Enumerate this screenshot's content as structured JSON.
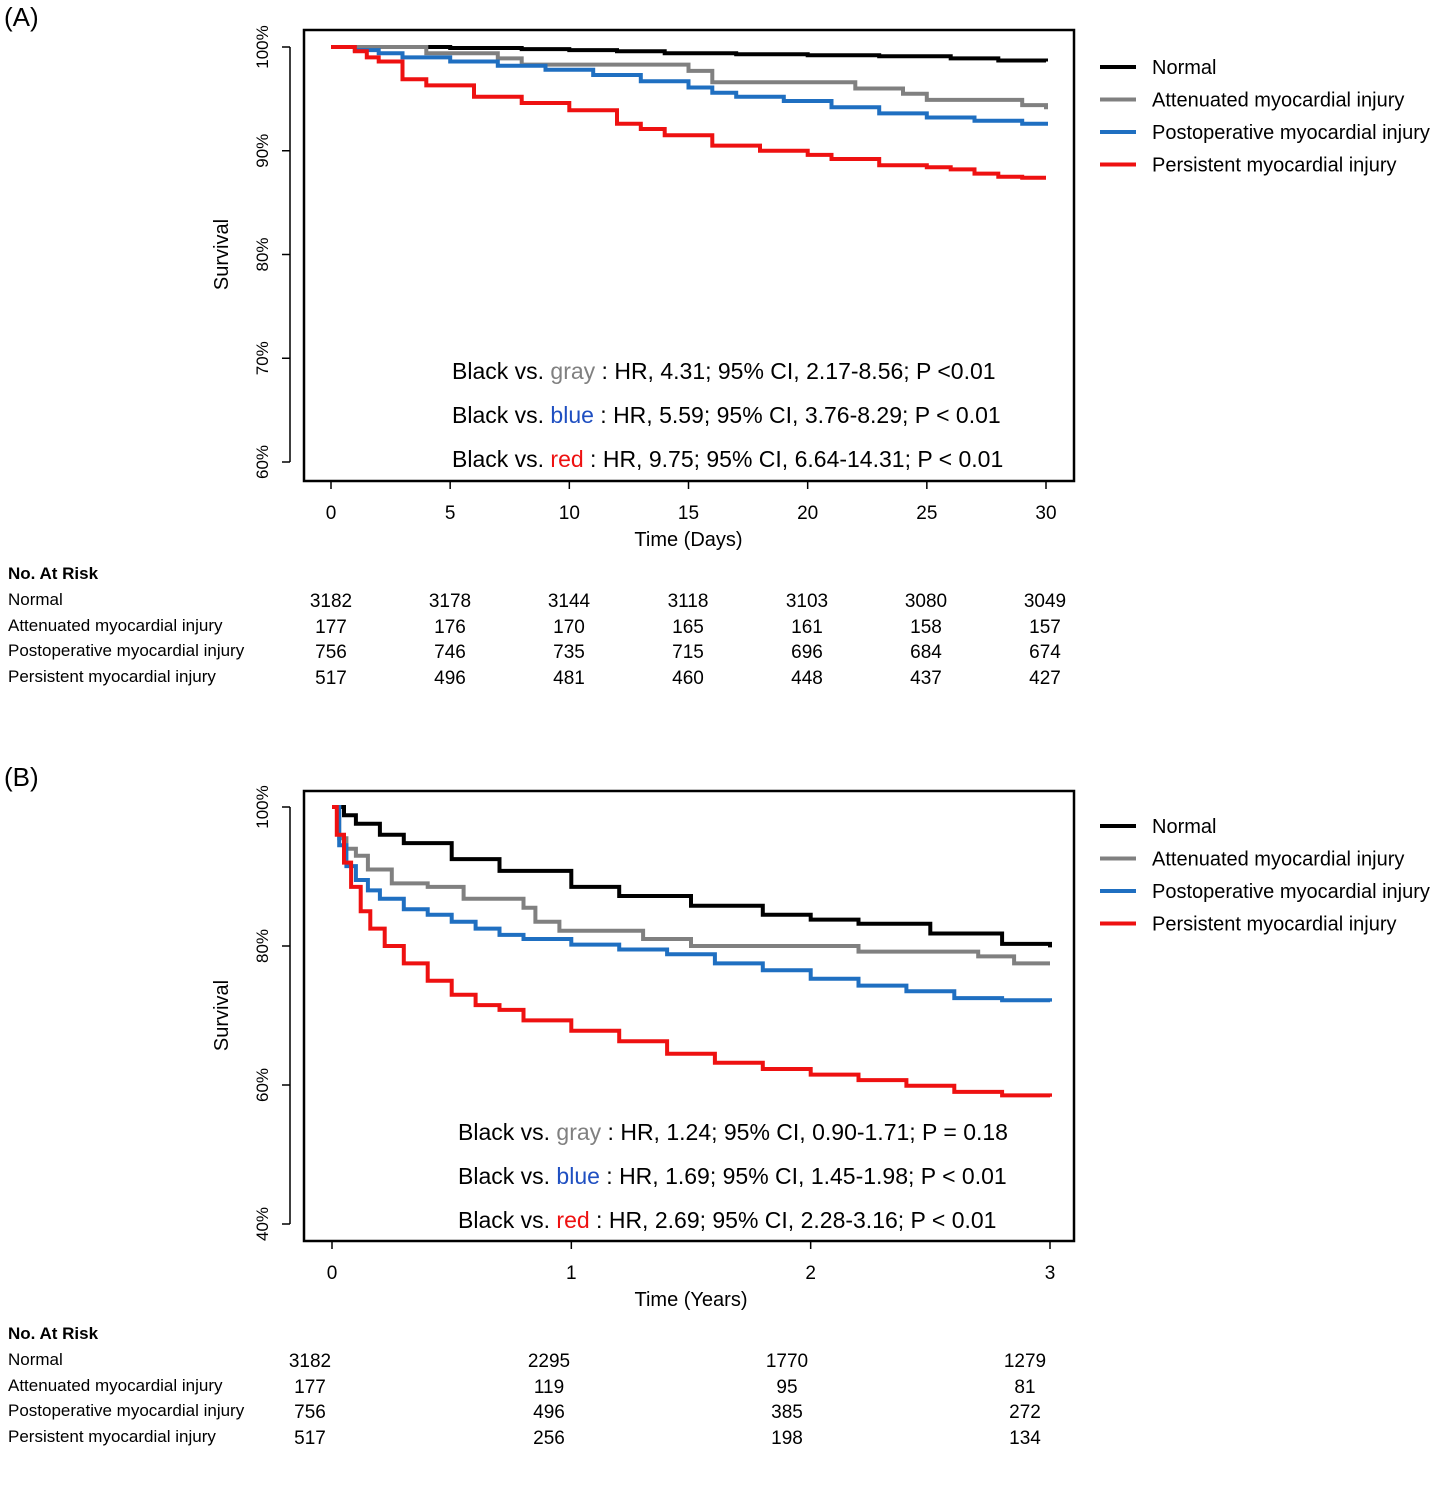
{
  "panel_a": {
    "label": "(A)",
    "legend": [
      {
        "name": "Normal",
        "color": "#000000"
      },
      {
        "name": "Attenuated myocardial injury",
        "color": "#808080"
      },
      {
        "name": "Postoperative myocardial injury",
        "color": "#1f6fc1"
      },
      {
        "name": "Persistent myocardial injury",
        "color": "#ee1111"
      }
    ],
    "annotations": [
      {
        "pre": "Black vs. ",
        "word": "gray",
        "color": "#808080",
        "post": " : HR, 4.31; 95% CI, 2.17-8.56; P <0.01"
      },
      {
        "pre": "Black vs. ",
        "word": "blue",
        "color": "#1f4fc1",
        "post": " : HR, 5.59; 95% CI, 3.76-8.29; P < 0.01"
      },
      {
        "pre": "Black vs. ",
        "word": "red",
        "color": "#ee1111",
        "post": "   : HR, 9.75; 95% CI, 6.64-14.31; P < 0.01"
      }
    ],
    "risk_table": {
      "title": "No. At Risk",
      "rows": [
        {
          "name": "Normal",
          "values": [
            "3182",
            "3178",
            "3144",
            "3118",
            "3103",
            "3080",
            "3049"
          ]
        },
        {
          "name": "Attenuated myocardial injury",
          "values": [
            "177",
            "176",
            "170",
            "165",
            "161",
            "158",
            "157"
          ]
        },
        {
          "name": "Postoperative myocardial injury",
          "values": [
            "756",
            "746",
            "735",
            "715",
            "696",
            "684",
            "674"
          ]
        },
        {
          "name": "Persistent myocardial injury",
          "values": [
            "517",
            "496",
            "481",
            "460",
            "448",
            "437",
            "427"
          ]
        }
      ]
    }
  },
  "panel_b": {
    "label": "(B)",
    "legend": [
      {
        "name": "Normal",
        "color": "#000000"
      },
      {
        "name": "Attenuated myocardial injury",
        "color": "#808080"
      },
      {
        "name": "Postoperative myocardial injury",
        "color": "#1f6fc1"
      },
      {
        "name": "Persistent myocardial injury",
        "color": "#ee1111"
      }
    ],
    "annotations": [
      {
        "pre": "Black vs. ",
        "word": "gray",
        "color": "#808080",
        "post": " : HR, 1.24; 95% CI, 0.90-1.71; P = 0.18"
      },
      {
        "pre": "Black vs. ",
        "word": "blue",
        "color": "#1f4fc1",
        "post": " : HR, 1.69; 95% CI, 1.45-1.98; P < 0.01"
      },
      {
        "pre": "Black vs. ",
        "word": "red",
        "color": "#ee1111",
        "post": "   : HR, 2.69; 95% CI, 2.28-3.16; P < 0.01"
      }
    ],
    "risk_table": {
      "title": "No. At Risk",
      "rows": [
        {
          "name": "Normal",
          "values": [
            "3182",
            "2295",
            "1770",
            "1279"
          ]
        },
        {
          "name": "Attenuated myocardial injury",
          "values": [
            "177",
            "119",
            "95",
            "81"
          ]
        },
        {
          "name": "Postoperative myocardial injury",
          "values": [
            "756",
            "496",
            "385",
            "272"
          ]
        },
        {
          "name": "Persistent myocardial injury",
          "values": [
            "517",
            "256",
            "198",
            "134"
          ]
        }
      ]
    }
  },
  "chart_data": [
    {
      "type": "line",
      "title": "(A)",
      "xlabel": "Time (Days)",
      "ylabel": "Survival",
      "xlim": [
        0,
        30
      ],
      "ylim": [
        60,
        100
      ],
      "x_ticks": [
        0,
        5,
        10,
        15,
        20,
        25,
        30
      ],
      "y_ticks": [
        60,
        70,
        80,
        90,
        100
      ],
      "y_tick_labels": [
        "60%",
        "70%",
        "80%",
        "90%",
        "100%"
      ],
      "series": [
        {
          "name": "Normal",
          "color": "#000000",
          "x": [
            0,
            2,
            5,
            8,
            10,
            12,
            14,
            17,
            20,
            23,
            26,
            28,
            30
          ],
          "y": [
            100,
            100,
            99.9,
            99.8,
            99.7,
            99.6,
            99.4,
            99.3,
            99.2,
            99.1,
            98.9,
            98.7,
            98.6
          ]
        },
        {
          "name": "Attenuated myocardial injury",
          "color": "#808080",
          "x": [
            0,
            1,
            3,
            4,
            6,
            7,
            8,
            10,
            14,
            15,
            16,
            20,
            22,
            24,
            25,
            29,
            30
          ],
          "y": [
            100,
            100,
            100,
            99.4,
            99.4,
            98.9,
            98.3,
            98.3,
            98.3,
            97.7,
            96.6,
            96.6,
            96.0,
            95.5,
            94.9,
            94.4,
            94.0
          ]
        },
        {
          "name": "Postoperative myocardial injury",
          "color": "#1f6fc1",
          "x": [
            0,
            1,
            2,
            3,
            5,
            7,
            9,
            11,
            13,
            15,
            16,
            17,
            19,
            21,
            23,
            25,
            27,
            29,
            30
          ],
          "y": [
            100,
            99.7,
            99.4,
            99.0,
            98.6,
            98.2,
            97.8,
            97.3,
            96.7,
            96.1,
            95.6,
            95.2,
            94.8,
            94.2,
            93.6,
            93.2,
            92.9,
            92.6,
            92.4
          ]
        },
        {
          "name": "Persistent myocardial injury",
          "color": "#ee1111",
          "x": [
            0,
            1,
            1.5,
            2,
            3,
            4,
            6,
            8,
            10,
            12,
            13,
            14,
            16,
            18,
            20,
            21,
            23,
            25,
            26,
            27,
            28,
            29,
            30
          ],
          "y": [
            100,
            99.6,
            99.0,
            98.6,
            96.9,
            96.3,
            95.2,
            94.6,
            93.9,
            92.6,
            92.1,
            91.5,
            90.5,
            90.0,
            89.6,
            89.2,
            88.6,
            88.4,
            88.2,
            87.8,
            87.5,
            87.4,
            87.4
          ]
        }
      ]
    },
    {
      "type": "line",
      "title": "(B)",
      "xlabel": "Time (Years)",
      "ylabel": "Survival",
      "xlim": [
        0,
        3
      ],
      "ylim": [
        40,
        100
      ],
      "x_ticks": [
        0,
        1,
        2,
        3
      ],
      "y_ticks": [
        40,
        60,
        80,
        100
      ],
      "y_tick_labels": [
        "40%",
        "60%",
        "80%",
        "100%"
      ],
      "series": [
        {
          "name": "Normal",
          "color": "#000000",
          "x": [
            0,
            0.05,
            0.1,
            0.2,
            0.3,
            0.5,
            0.7,
            1.0,
            1.2,
            1.5,
            1.8,
            2.0,
            2.2,
            2.5,
            2.8,
            3.0
          ],
          "y": [
            100,
            98.8,
            97.6,
            96.0,
            94.8,
            92.5,
            90.8,
            88.5,
            87.2,
            85.8,
            84.5,
            83.8,
            83.2,
            81.8,
            80.3,
            79.8
          ]
        },
        {
          "name": "Attenuated myocardial injury",
          "color": "#808080",
          "x": [
            0,
            0.03,
            0.06,
            0.1,
            0.15,
            0.25,
            0.4,
            0.55,
            0.8,
            0.85,
            0.95,
            1.2,
            1.3,
            1.5,
            2.0,
            2.2,
            2.5,
            2.7,
            2.85,
            3.0
          ],
          "y": [
            100,
            95.5,
            94.0,
            93.0,
            91.0,
            89.0,
            88.5,
            86.8,
            85.5,
            83.5,
            82.2,
            82.2,
            81.0,
            80.0,
            80.0,
            79.2,
            79.2,
            78.5,
            77.5,
            77.5
          ]
        },
        {
          "name": "Postoperative myocardial injury",
          "color": "#1f6fc1",
          "x": [
            0,
            0.03,
            0.06,
            0.1,
            0.15,
            0.2,
            0.3,
            0.4,
            0.5,
            0.6,
            0.7,
            0.8,
            1.0,
            1.2,
            1.4,
            1.6,
            1.8,
            2.0,
            2.2,
            2.4,
            2.6,
            2.8,
            3.0
          ],
          "y": [
            100,
            94.5,
            91.5,
            89.5,
            88.0,
            86.8,
            85.3,
            84.5,
            83.5,
            82.5,
            81.6,
            81.0,
            80.2,
            79.5,
            78.8,
            77.5,
            76.5,
            75.3,
            74.3,
            73.5,
            72.5,
            72.2,
            72.0
          ]
        },
        {
          "name": "Persistent myocardial injury",
          "color": "#ee1111",
          "x": [
            0,
            0.02,
            0.05,
            0.08,
            0.12,
            0.16,
            0.22,
            0.3,
            0.4,
            0.5,
            0.6,
            0.7,
            0.8,
            1.0,
            1.2,
            1.4,
            1.6,
            1.8,
            2.0,
            2.2,
            2.4,
            2.6,
            2.8,
            3.0
          ],
          "y": [
            100,
            96.0,
            92.0,
            88.5,
            85.0,
            82.5,
            80.0,
            77.5,
            75.0,
            73.0,
            71.5,
            70.8,
            69.3,
            67.8,
            66.3,
            64.5,
            63.2,
            62.3,
            61.5,
            60.7,
            59.9,
            59.0,
            58.5,
            58.3
          ]
        }
      ]
    }
  ]
}
